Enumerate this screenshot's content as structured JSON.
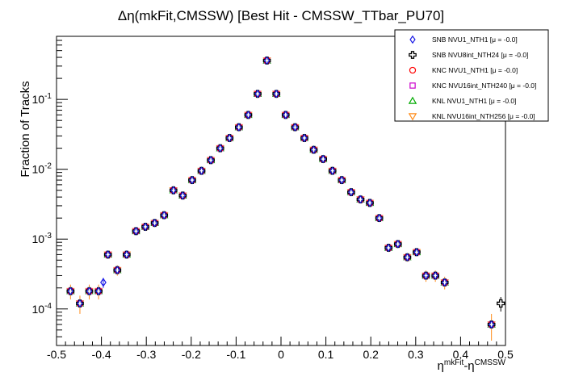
{
  "chart_data": {
    "type": "scatter",
    "title": "Δη(mkFit,CMSSW) [Best Hit - CMSSW_TTbar_PU70]",
    "xlabel": {
      "base": "η",
      "sup1": "mkFit",
      "mid": "-η",
      "sup2": "CMSSW"
    },
    "ylabel": "Fraction of Tracks",
    "xlim": [
      -0.5,
      0.5
    ],
    "ylim": [
      3e-05,
      0.8
    ],
    "yscale": "log",
    "x_ticks": [
      "-0.5",
      "-0.4",
      "-0.3",
      "-0.2",
      "-0.1",
      "0",
      "0.1",
      "0.2",
      "0.3",
      "0.4",
      "0.5"
    ],
    "y_ticks": [
      {
        "base": "10",
        "exp": "-4",
        "value": 0.0001
      },
      {
        "base": "10",
        "exp": "-3",
        "value": 0.001
      },
      {
        "base": "10",
        "exp": "-2",
        "value": 0.01
      },
      {
        "base": "10",
        "exp": "-1",
        "value": 0.1
      }
    ],
    "legend_position": "top-right",
    "series": [
      {
        "name": "SNB NVU1_NTH1 [μ = -0.0]",
        "marker": "diamond",
        "color": "#1a1ae6"
      },
      {
        "name": "SNB NVU8int_NTH24 [μ = -0.0]",
        "marker": "cross",
        "color": "#000000"
      },
      {
        "name": "KNC NVU1_NTH1 [μ = -0.0]",
        "marker": "circle",
        "color": "#ff0000"
      },
      {
        "name": "KNC NVU16int_NTH240 [μ = -0.0]",
        "marker": "square",
        "color": "#cc00cc"
      },
      {
        "name": "KNL NVU1_NTH1 [μ = -0.0]",
        "marker": "triangle-up",
        "color": "#00aa00"
      },
      {
        "name": "KNL NVU16int_NTH256 [μ = -0.0]",
        "marker": "triangle-down",
        "color": "#ff8c1a"
      }
    ],
    "points": [
      {
        "x": -0.4688,
        "y": 0.00018
      },
      {
        "x": -0.4479,
        "y": 0.00012
      },
      {
        "x": -0.4271,
        "y": 0.00018
      },
      {
        "x": -0.4063,
        "y": 0.00018
      },
      {
        "x": -0.3854,
        "y": 0.0006
      },
      {
        "x": -0.3646,
        "y": 0.00036
      },
      {
        "x": -0.3438,
        "y": 0.0006
      },
      {
        "x": -0.3229,
        "y": 0.0013
      },
      {
        "x": -0.3021,
        "y": 0.0015
      },
      {
        "x": -0.2813,
        "y": 0.0017
      },
      {
        "x": -0.2604,
        "y": 0.0022
      },
      {
        "x": -0.2396,
        "y": 0.005
      },
      {
        "x": -0.2188,
        "y": 0.0042
      },
      {
        "x": -0.1979,
        "y": 0.007
      },
      {
        "x": -0.1771,
        "y": 0.0095
      },
      {
        "x": -0.1563,
        "y": 0.0135
      },
      {
        "x": -0.1354,
        "y": 0.02
      },
      {
        "x": -0.1146,
        "y": 0.028
      },
      {
        "x": -0.0938,
        "y": 0.04
      },
      {
        "x": -0.0729,
        "y": 0.06
      },
      {
        "x": -0.0521,
        "y": 0.12
      },
      {
        "x": -0.0313,
        "y": 0.36
      },
      {
        "x": -0.0104,
        "y": 0.12
      },
      {
        "x": 0.0104,
        "y": 0.06
      },
      {
        "x": 0.0313,
        "y": 0.04
      },
      {
        "x": 0.0521,
        "y": 0.028
      },
      {
        "x": 0.0729,
        "y": 0.019
      },
      {
        "x": 0.0938,
        "y": 0.014
      },
      {
        "x": 0.1146,
        "y": 0.0095
      },
      {
        "x": 0.1354,
        "y": 0.007
      },
      {
        "x": 0.1563,
        "y": 0.0047
      },
      {
        "x": 0.1771,
        "y": 0.0037
      },
      {
        "x": 0.1979,
        "y": 0.0033
      },
      {
        "x": 0.2188,
        "y": 0.002
      },
      {
        "x": 0.2396,
        "y": 0.00075
      },
      {
        "x": 0.2604,
        "y": 0.00085
      },
      {
        "x": 0.2813,
        "y": 0.00055
      },
      {
        "x": 0.3021,
        "y": 0.00065
      },
      {
        "x": 0.3229,
        "y": 0.0003
      },
      {
        "x": 0.3438,
        "y": 0.0003
      },
      {
        "x": 0.3646,
        "y": 0.00024
      },
      {
        "x": 0.4688,
        "y": 6e-05
      }
    ],
    "overlaid_pairs": [
      {
        "x": -0.3958,
        "y": 0.00024,
        "series": 0
      },
      {
        "x": 0.4896,
        "y": 0.00012,
        "series": 1
      }
    ]
  }
}
